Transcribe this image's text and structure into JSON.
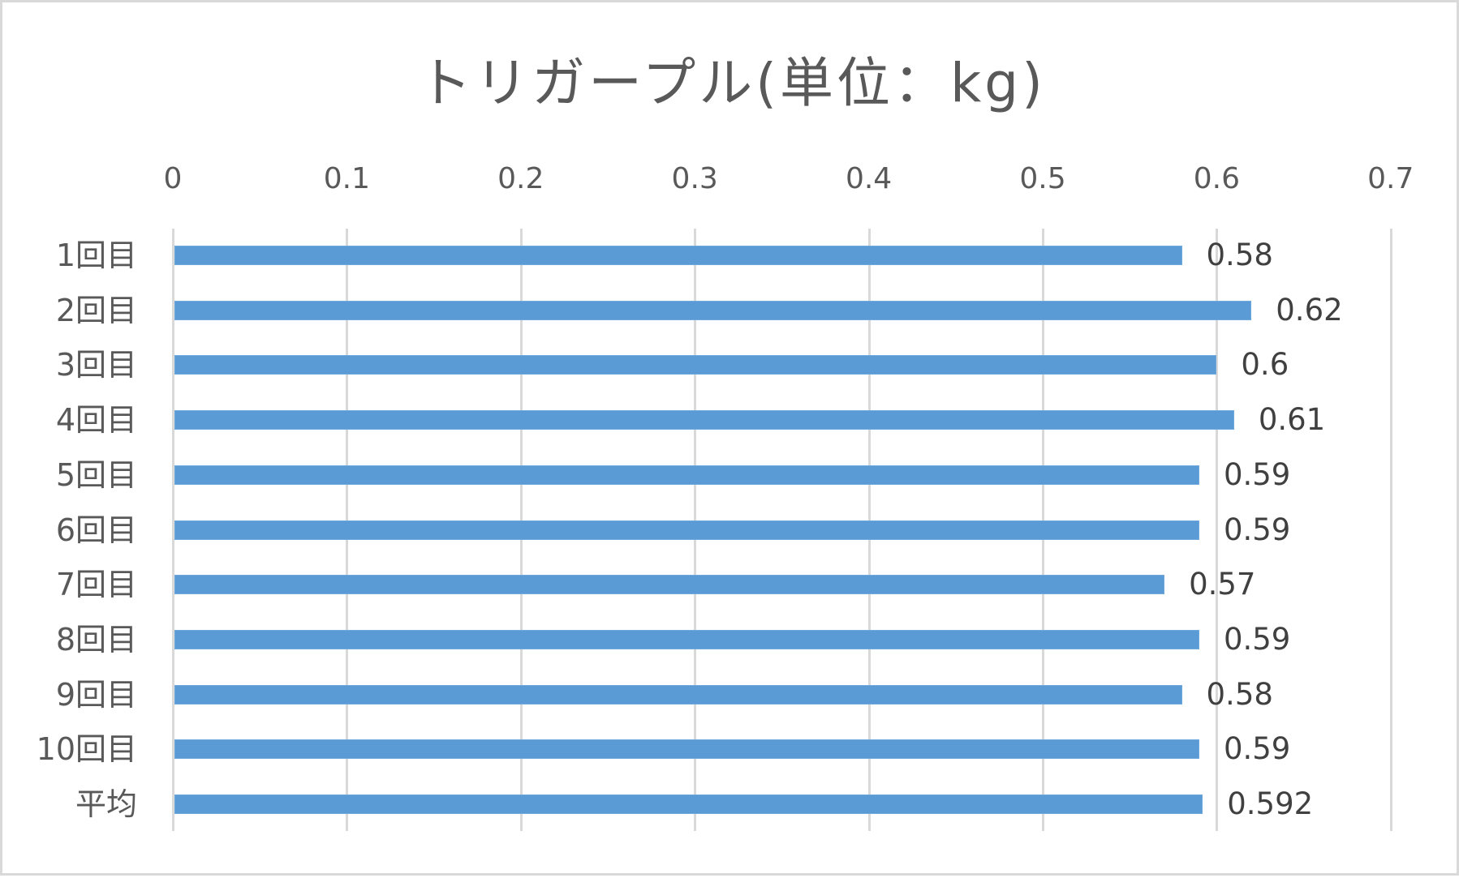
{
  "chart": {
    "title": "トリガープル(単位：kg)"
  },
  "axis": {
    "ticks": [
      "0",
      "0.1",
      "0.2",
      "0.3",
      "0.4",
      "0.5",
      "0.6",
      "0.7"
    ]
  },
  "rows": [
    {
      "category": "1回目",
      "value_label": "0.58"
    },
    {
      "category": "2回目",
      "value_label": "0.62"
    },
    {
      "category": "3回目",
      "value_label": "0.6"
    },
    {
      "category": "4回目",
      "value_label": "0.61"
    },
    {
      "category": "5回目",
      "value_label": "0.59"
    },
    {
      "category": "6回目",
      "value_label": "0.59"
    },
    {
      "category": "7回目",
      "value_label": "0.57"
    },
    {
      "category": "8回目",
      "value_label": "0.59"
    },
    {
      "category": "9回目",
      "value_label": "0.58"
    },
    {
      "category": "10回目",
      "value_label": "0.59"
    },
    {
      "category": "平均",
      "value_label": "0.592"
    }
  ],
  "colors": {
    "bar": "#5B9BD5",
    "gridline": "#D9D9D9",
    "text": "#595959",
    "data_label": "#404040",
    "border": "#D9D9D9"
  },
  "chart_data": {
    "type": "bar",
    "orientation": "horizontal",
    "title": "トリガープル(単位：kg)",
    "xlabel": "",
    "ylabel": "",
    "categories": [
      "1回目",
      "2回目",
      "3回目",
      "4回目",
      "5回目",
      "6回目",
      "7回目",
      "8回目",
      "9回目",
      "10回目",
      "平均"
    ],
    "values": [
      0.58,
      0.62,
      0.6,
      0.61,
      0.59,
      0.59,
      0.57,
      0.59,
      0.58,
      0.59,
      0.592
    ],
    "data_labels": [
      "0.58",
      "0.62",
      "0.6",
      "0.61",
      "0.59",
      "0.59",
      "0.57",
      "0.59",
      "0.58",
      "0.59",
      "0.592"
    ],
    "xlim": [
      0,
      0.7
    ],
    "x_ticks": [
      0,
      0.1,
      0.2,
      0.3,
      0.4,
      0.5,
      0.6,
      0.7
    ],
    "x_axis_position": "top",
    "grid": "vertical",
    "legend": "none",
    "series": [
      {
        "name": "トリガープル",
        "color": "#5B9BD5",
        "values": [
          0.58,
          0.62,
          0.6,
          0.61,
          0.59,
          0.59,
          0.57,
          0.59,
          0.58,
          0.59,
          0.592
        ]
      }
    ]
  }
}
